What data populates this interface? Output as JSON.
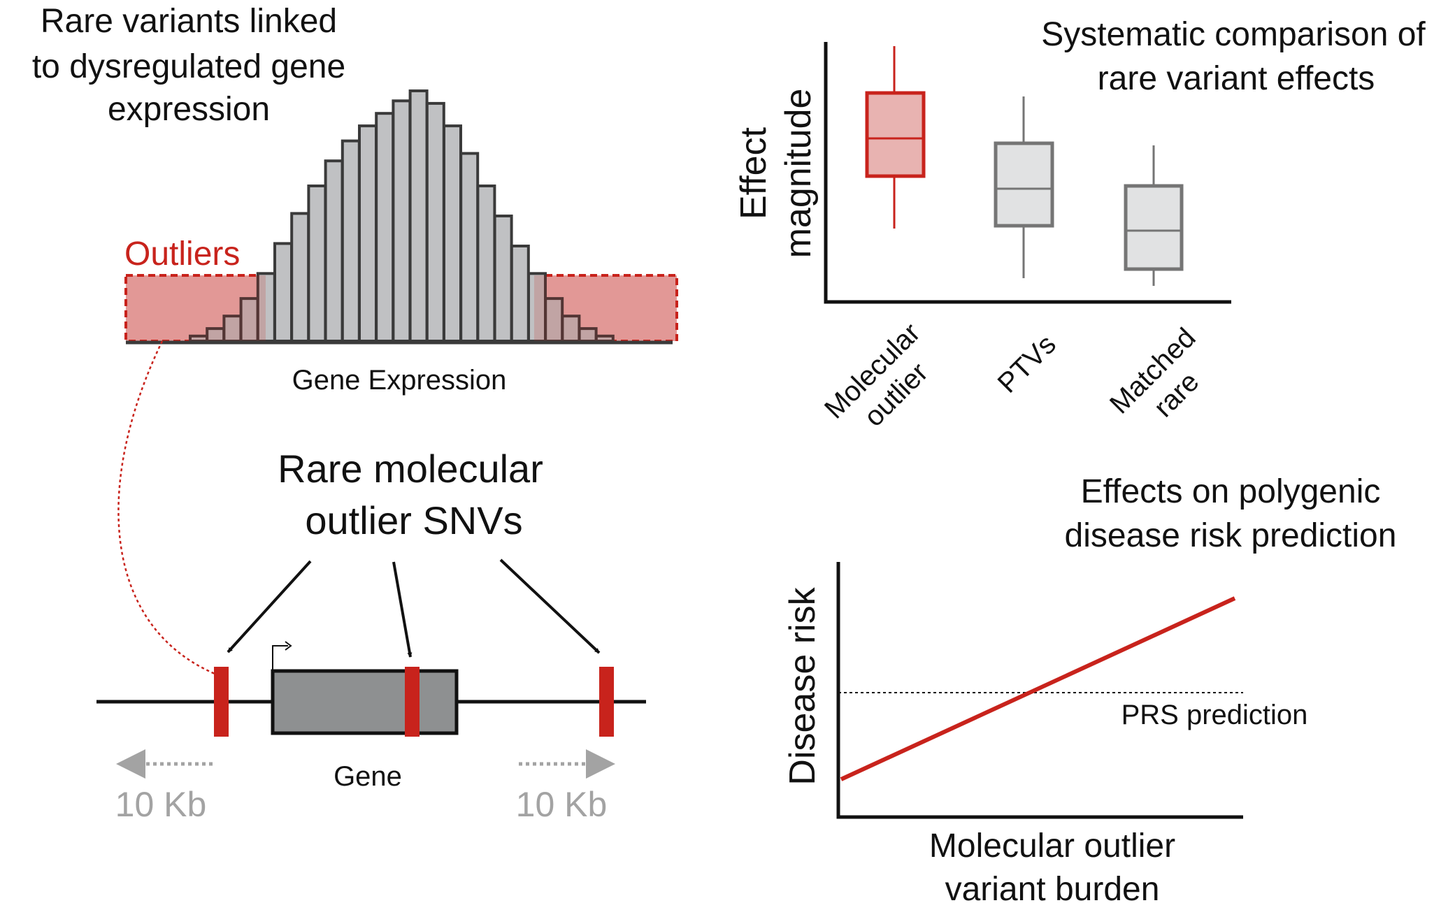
{
  "colors": {
    "outlier_red": "#c8231c",
    "outlier_fill": "#e8b3b1",
    "bar_fill": "#c0c1c3",
    "bar_stroke": "#3a3a3a",
    "gene_fill": "#8e9091",
    "box_gray_fill": "#e1e2e3",
    "box_gray_stroke": "#757575",
    "muted_gray": "#a3a3a3",
    "ink": "#111111"
  },
  "panel_expression": {
    "title_lines": [
      "Rare variants linked",
      "to dysregulated gene",
      "expression"
    ],
    "outliers_label": "Outliers",
    "axis_label": "Gene Expression",
    "histogram_heights": [
      0.02,
      0.05,
      0.1,
      0.17,
      0.27,
      0.39,
      0.51,
      0.62,
      0.72,
      0.8,
      0.86,
      0.91,
      0.96,
      1.0,
      0.95,
      0.86,
      0.75,
      0.62,
      0.5,
      0.38,
      0.27,
      0.17,
      0.1,
      0.05,
      0.02
    ]
  },
  "panel_genome": {
    "title_lines": [
      "Rare molecular",
      "outlier SNVs"
    ],
    "gene_label": "Gene",
    "left_distance": "10 Kb",
    "right_distance": "10 Kb"
  },
  "panel_effects": {
    "title_lines": [
      "Systematic comparison of",
      "rare variant effects"
    ],
    "ylabel_lines": [
      "Effect",
      "magnitude"
    ],
    "categories": [
      {
        "lines": [
          "Molecular",
          "outlier"
        ],
        "style": "red"
      },
      {
        "lines": [
          "PTVs"
        ],
        "style": "gray"
      },
      {
        "lines": [
          "Matched",
          "rare"
        ],
        "style": "gray"
      }
    ]
  },
  "panel_risk": {
    "title_lines": [
      "Effects on polygenic",
      "disease risk prediction"
    ],
    "ylabel": "Disease risk",
    "xlabel_lines": [
      "Molecular outlier",
      "variant burden"
    ],
    "threshold_label": "PRS prediction"
  }
}
